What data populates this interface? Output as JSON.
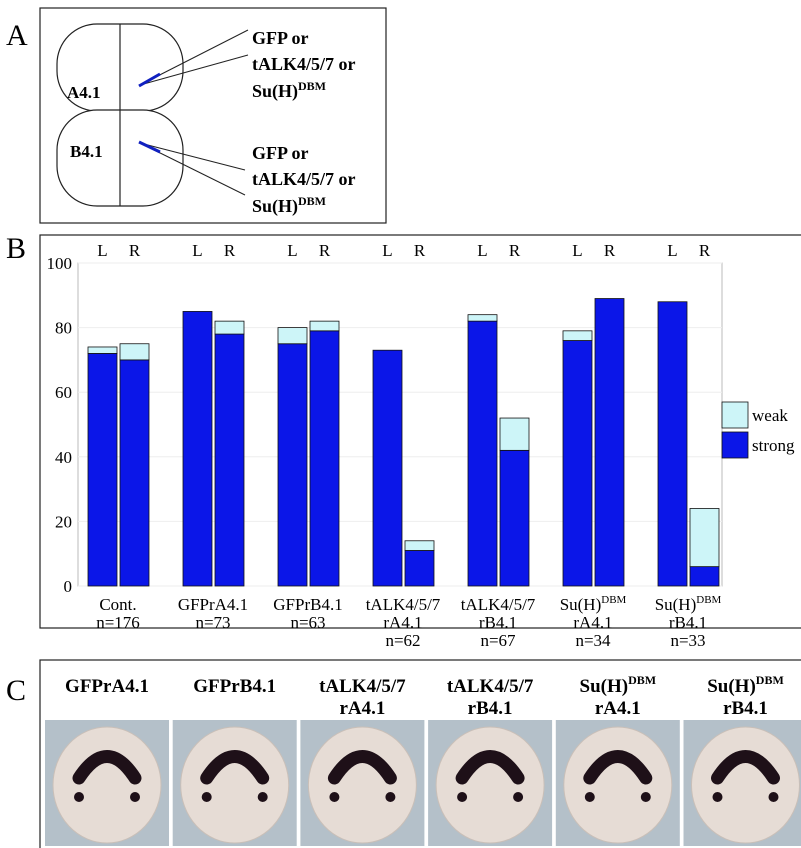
{
  "panel_labels": [
    "A",
    "B",
    "C"
  ],
  "panel_a": {
    "cells": [
      "A4.1",
      "B4.1"
    ],
    "injections": [
      {
        "lines": [
          "GFP or",
          "tALK4/5/7 or",
          "Su(H)"
        ],
        "sup": "DBM"
      },
      {
        "lines": [
          "GFP or",
          "tALK4/5/7 or",
          "Su(H)"
        ],
        "sup": "DBM"
      }
    ]
  },
  "chart_data": {
    "type": "bar",
    "stacked": true,
    "categories": [
      "L",
      "R",
      "L",
      "R",
      "L",
      "R",
      "L",
      "R",
      "L",
      "R",
      "L",
      "R",
      "L",
      "R"
    ],
    "groups": [
      {
        "lines": [
          "Cont.",
          "n=176"
        ]
      },
      {
        "lines": [
          "GFPrA4.1",
          "n=73"
        ]
      },
      {
        "lines": [
          "GFPrB4.1",
          "n=63"
        ]
      },
      {
        "lines": [
          "tALK4/5/7",
          "rA4.1",
          "n=62"
        ]
      },
      {
        "lines": [
          "tALK4/5/7",
          "rB4.1",
          "n=67"
        ]
      },
      {
        "lines": [
          "Su(H)",
          "rA4.1",
          "n=34"
        ],
        "sup": "DBM"
      },
      {
        "lines": [
          "Su(H)",
          "rB4.1",
          "n=33"
        ],
        "sup": "DBM"
      }
    ],
    "series": [
      {
        "name": "strong",
        "color": "#0b16e8",
        "values": [
          72,
          70,
          85,
          78,
          75,
          79,
          73,
          11,
          82,
          42,
          76,
          89,
          88,
          6
        ]
      },
      {
        "name": "weak",
        "color": "#cdf5f8",
        "values": [
          2,
          5,
          0,
          4,
          5,
          3,
          0,
          3,
          2,
          10,
          3,
          0,
          0,
          18
        ]
      }
    ],
    "ylim": [
      0,
      100
    ],
    "yticks": [
      0,
      20,
      40,
      60,
      80,
      100
    ],
    "grid": true,
    "legend": "right"
  },
  "panel_c": {
    "images": [
      {
        "lines": [
          "GFPrA4.1"
        ]
      },
      {
        "lines": [
          "GFPrB4.1"
        ]
      },
      {
        "lines": [
          "tALK4/5/7",
          "rA4.1"
        ]
      },
      {
        "lines": [
          "tALK4/5/7",
          "rB4.1"
        ]
      },
      {
        "lines": [
          "Su(H)",
          "rA4.1"
        ],
        "sup": "DBM"
      },
      {
        "lines": [
          "Su(H)",
          "rB4.1"
        ],
        "sup": "DBM"
      }
    ]
  }
}
